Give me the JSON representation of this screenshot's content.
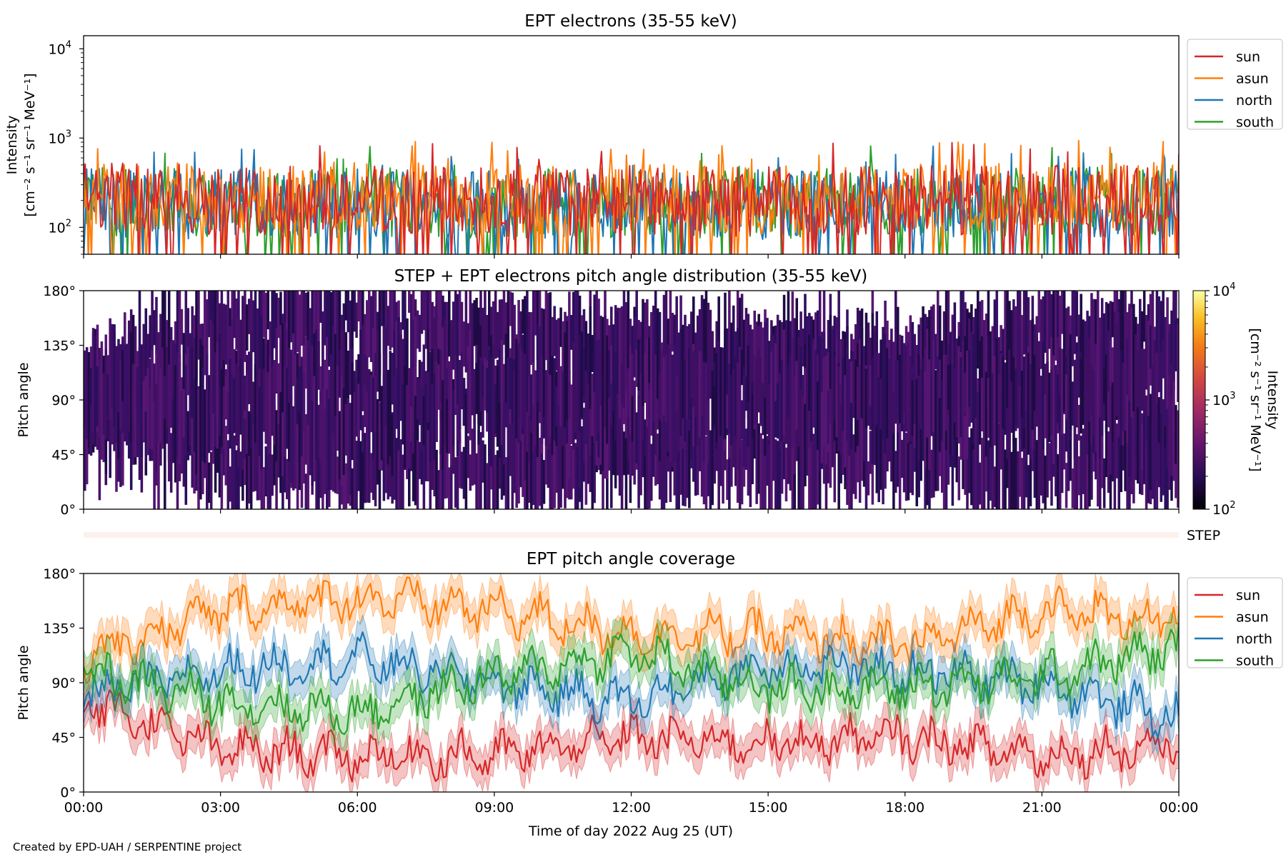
{
  "footer": {
    "credit": "Created by EPD-UAH / SERPENTINE project"
  },
  "colors": {
    "sun": "#d62728",
    "asun": "#ff7f0e",
    "north": "#1f77b4",
    "south": "#2ca02c",
    "step_bar": "#fdf1ec"
  },
  "x_axis": {
    "label": "Time of day 2022 Aug 25 (UT)",
    "ticks": [
      "00:00",
      "03:00",
      "06:00",
      "09:00",
      "12:00",
      "15:00",
      "18:00",
      "21:00",
      "00:00"
    ],
    "range_hours": [
      0,
      24
    ]
  },
  "panels": {
    "intensity": {
      "title": "EPT electrons (35-55 keV)",
      "ylabel_line1": "Intensity",
      "ylabel_line2": "[cm⁻² s⁻¹ sr⁻¹ MeV⁻¹]",
      "ytick_base": [
        "10",
        "10",
        "10"
      ],
      "ytick_exp": [
        "4",
        "3",
        "2"
      ]
    },
    "pad": {
      "title": "STEP + EPT electrons pitch angle distribution (35-55 keV)",
      "ylabel": "Pitch angle",
      "yticks": [
        "180°",
        "135°",
        "90°",
        "45°",
        "0°"
      ],
      "colorbar_label_line1": "Intensity",
      "colorbar_label_line2": "[cm⁻² s⁻¹ sr⁻¹ MeV⁻¹]",
      "colorbar_base": [
        "10",
        "10",
        "10"
      ],
      "colorbar_exp": [
        "4",
        "3",
        "2"
      ]
    },
    "step_label": "STEP",
    "coverage": {
      "title": "EPT pitch angle coverage",
      "ylabel": "Pitch angle",
      "yticks": [
        "180°",
        "135°",
        "90°",
        "45°",
        "0°"
      ]
    },
    "legend": [
      "sun",
      "asun",
      "north",
      "south"
    ]
  },
  "chart_data": [
    {
      "type": "line",
      "title": "EPT electrons (35-55 keV)",
      "xlabel": "Time of day 2022 Aug 25 (UT)",
      "ylabel": "Intensity [cm⁻² s⁻¹ sr⁻¹ MeV⁻¹]",
      "yscale": "log",
      "ylim": [
        50,
        14000
      ],
      "x": [
        "00:00",
        "03:00",
        "06:00",
        "09:00",
        "12:00",
        "15:00",
        "18:00",
        "21:00",
        "24:00"
      ],
      "series": [
        {
          "name": "sun",
          "values": [
            220,
            200,
            210,
            190,
            200,
            195,
            205,
            200,
            210
          ]
        },
        {
          "name": "asun",
          "values": [
            230,
            215,
            220,
            205,
            210,
            200,
            210,
            215,
            220
          ]
        },
        {
          "name": "north",
          "values": [
            190,
            180,
            185,
            175,
            185,
            180,
            190,
            185,
            180
          ]
        },
        {
          "name": "south",
          "values": [
            200,
            185,
            195,
            180,
            190,
            185,
            195,
            190,
            185
          ]
        }
      ],
      "legend": "upper right outside",
      "grid": false
    },
    {
      "type": "heatmap",
      "title": "STEP + EPT electrons pitch angle distribution (35-55 keV)",
      "ylabel": "Pitch angle",
      "ylim": [
        0,
        180
      ],
      "colorbar": {
        "label": "Intensity [cm⁻² s⁻¹ sr⁻¹ MeV⁻¹]",
        "scale": "log",
        "range": [
          100,
          10000
        ],
        "colormap": "inferno"
      }
    },
    {
      "type": "line",
      "title": "EPT pitch angle coverage",
      "xlabel": "Time of day 2022 Aug 25 (UT)",
      "ylabel": "Pitch angle",
      "ylim": [
        0,
        180
      ],
      "x": [
        "00:00",
        "03:00",
        "06:00",
        "09:00",
        "12:00",
        "15:00",
        "18:00",
        "21:00",
        "24:00"
      ],
      "series": [
        {
          "name": "sun",
          "values": [
            75,
            35,
            30,
            30,
            45,
            40,
            45,
            30,
            40
          ]
        },
        {
          "name": "asun",
          "values": [
            110,
            150,
            160,
            150,
            130,
            130,
            120,
            150,
            140
          ]
        },
        {
          "name": "north",
          "values": [
            80,
            100,
            110,
            90,
            75,
            105,
            100,
            90,
            60
          ]
        },
        {
          "name": "south",
          "values": [
            100,
            75,
            65,
            95,
            115,
            85,
            85,
            95,
            120
          ]
        }
      ],
      "legend": "upper right outside",
      "grid": false
    }
  ]
}
